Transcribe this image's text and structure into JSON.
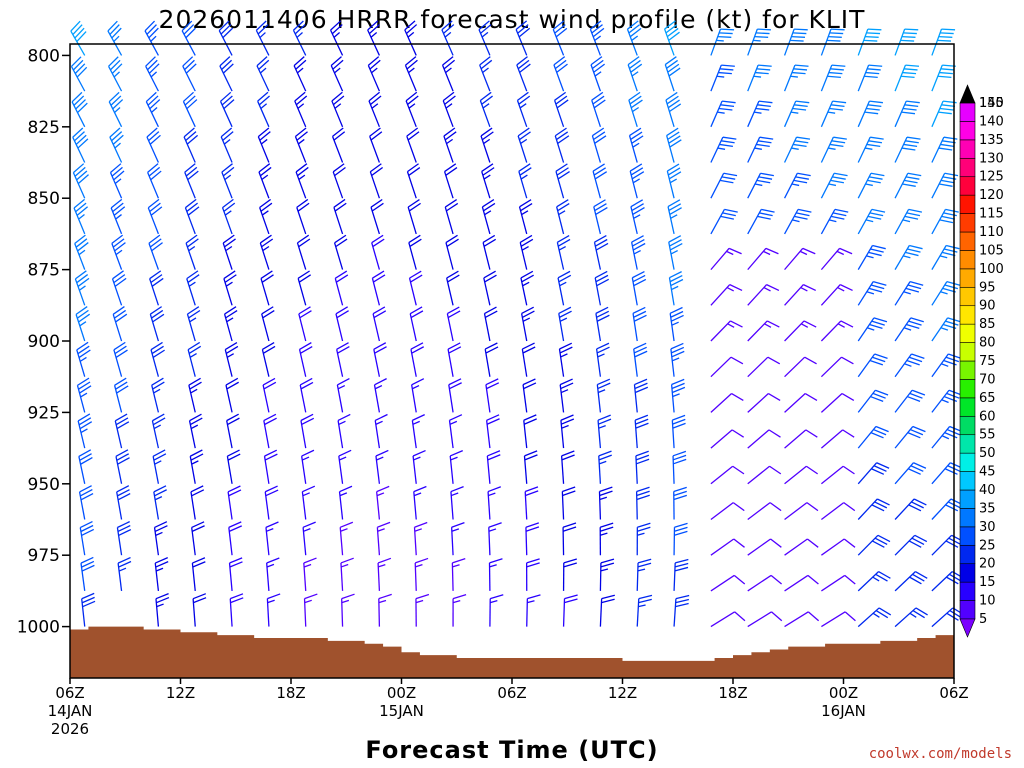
{
  "chart_data": {
    "type": "wind_barb_profile",
    "title": "2026011406 HRRR forecast wind profile (kt) for KLIT",
    "xlabel": "Forecast Time (UTC)",
    "credit": "coolwx.com/models",
    "y_ticks": [
      {
        "value": 800,
        "label": "800"
      },
      {
        "value": 825,
        "label": "825"
      },
      {
        "value": 850,
        "label": "850"
      },
      {
        "value": 875,
        "label": "875"
      },
      {
        "value": 900,
        "label": "900"
      },
      {
        "value": 925,
        "label": "925"
      },
      {
        "value": 950,
        "label": "950"
      },
      {
        "value": 975,
        "label": "975"
      },
      {
        "value": 1000,
        "label": "1000"
      }
    ],
    "ylim": [
      796,
      1018
    ],
    "x_hours_range": [
      0,
      48
    ],
    "x_ticks": [
      {
        "hour": 0,
        "lines": [
          "06Z",
          "14JAN",
          "2026"
        ]
      },
      {
        "hour": 6,
        "lines": [
          "12Z"
        ]
      },
      {
        "hour": 12,
        "lines": [
          "18Z"
        ]
      },
      {
        "hour": 18,
        "lines": [
          "00Z",
          "15JAN"
        ]
      },
      {
        "hour": 24,
        "lines": [
          "06Z"
        ]
      },
      {
        "hour": 30,
        "lines": [
          "12Z"
        ]
      },
      {
        "hour": 36,
        "lines": [
          "18Z"
        ]
      },
      {
        "hour": 42,
        "lines": [
          "00Z",
          "16JAN"
        ]
      },
      {
        "hour": 48,
        "lines": [
          "06Z"
        ]
      }
    ],
    "terrain_surface_pressure": [
      {
        "hour": 0,
        "p": 1001
      },
      {
        "hour": 1,
        "p": 1000
      },
      {
        "hour": 4,
        "p": 1001
      },
      {
        "hour": 6,
        "p": 1002
      },
      {
        "hour": 8,
        "p": 1003
      },
      {
        "hour": 10,
        "p": 1004
      },
      {
        "hour": 14,
        "p": 1005
      },
      {
        "hour": 16,
        "p": 1006
      },
      {
        "hour": 17,
        "p": 1007
      },
      {
        "hour": 18,
        "p": 1009
      },
      {
        "hour": 19,
        "p": 1010
      },
      {
        "hour": 21,
        "p": 1011
      },
      {
        "hour": 30,
        "p": 1012
      },
      {
        "hour": 35,
        "p": 1011
      },
      {
        "hour": 36,
        "p": 1010
      },
      {
        "hour": 37,
        "p": 1009
      },
      {
        "hour": 38,
        "p": 1008
      },
      {
        "hour": 39,
        "p": 1007
      },
      {
        "hour": 41,
        "p": 1006
      },
      {
        "hour": 44,
        "p": 1005
      },
      {
        "hour": 46,
        "p": 1004
      },
      {
        "hour": 47,
        "p": 1003
      },
      {
        "hour": 48,
        "p": 1002
      }
    ],
    "barb_levels": [
      800,
      812.5,
      825,
      837.5,
      850,
      862.5,
      875,
      887.5,
      900,
      912.5,
      925,
      937.5,
      950,
      962.5,
      975,
      987.5,
      1000,
      1012.5
    ],
    "colorbar": {
      "labels": [
        5,
        10,
        15,
        20,
        25,
        30,
        35,
        40,
        45,
        50,
        55,
        60,
        65,
        70,
        75,
        80,
        85,
        90,
        95,
        100,
        105,
        110,
        115,
        120,
        125,
        130,
        135,
        140,
        145,
        150
      ],
      "colors": [
        "#7b00ff",
        "#5200ff",
        "#2800ff",
        "#0000e6",
        "#0028f0",
        "#0050ff",
        "#0078ff",
        "#00a0ff",
        "#00c8ff",
        "#00f0e6",
        "#00e6aa",
        "#00dc64",
        "#00e628",
        "#28f000",
        "#78f500",
        "#c8ff00",
        "#f0ff00",
        "#ffe600",
        "#ffc800",
        "#ffaa00",
        "#ff8c00",
        "#ff6400",
        "#ff3c00",
        "#ff1400",
        "#ff003c",
        "#ff0078",
        "#ff00b4",
        "#ff00e6",
        "#e600ff",
        "#000000"
      ]
    }
  }
}
